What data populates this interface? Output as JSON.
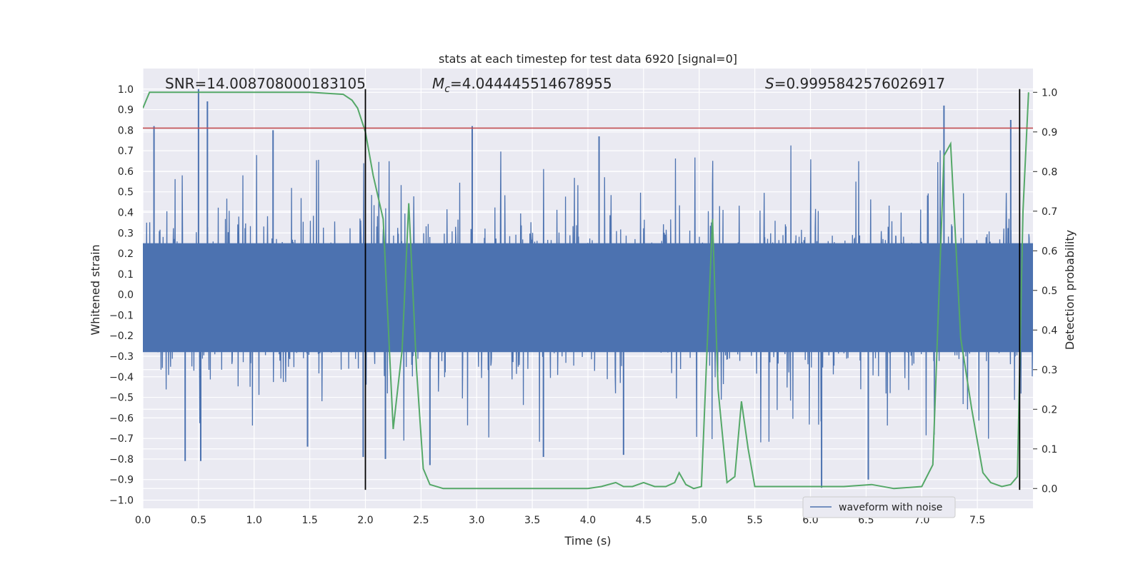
{
  "chart_data": {
    "type": "line",
    "title": "stats at each timestep for test data 6920 [signal=0]",
    "xlabel": "Time (s)",
    "ylabel": "Whitened strain",
    "y2label": "Detection probability",
    "xlim": [
      0.0,
      8.0
    ],
    "ylim": [
      -1.04,
      1.1
    ],
    "y2lim": [
      -0.05,
      1.06
    ],
    "xticks": [
      "0.0",
      "0.5",
      "1.0",
      "1.5",
      "2.0",
      "2.5",
      "3.0",
      "3.5",
      "4.0",
      "4.5",
      "5.0",
      "5.5",
      "6.0",
      "6.5",
      "7.0",
      "7.5"
    ],
    "yticks": [
      "1.0",
      "0.9",
      "0.8",
      "0.7",
      "0.6",
      "0.5",
      "0.4",
      "0.3",
      "0.2",
      "0.1",
      "0.0",
      "−0.1",
      "−0.2",
      "−0.3",
      "−0.4",
      "−0.5",
      "−0.6",
      "−0.7",
      "−0.8",
      "−0.9",
      "−1.0"
    ],
    "y2ticks": [
      "1.0",
      "0.9",
      "0.8",
      "0.7",
      "0.6",
      "0.5",
      "0.4",
      "0.3",
      "0.2",
      "0.1",
      "0.0"
    ],
    "grid": true,
    "legend_position": "lower-right",
    "annotations": {
      "snr": "SNR=14.008708000183105",
      "mc_symbol": "M",
      "mc_sub": "c",
      "mc_value": "=4.044445514678955",
      "s_symbol": "S",
      "s_value": "=0.9995842576026917"
    },
    "threshold_y": 0.81,
    "vlines_x": [
      2.0,
      7.88
    ],
    "vlines_yrange": [
      -0.95,
      1.0
    ],
    "series": [
      {
        "name": "waveform with noise",
        "color": "#4c72b0",
        "envelope_typical": 0.42,
        "peaks": [
          {
            "x": 0.5,
            "y": 1.0
          },
          {
            "x": 0.58,
            "y": 0.94
          },
          {
            "x": 0.1,
            "y": 0.82
          },
          {
            "x": 1.17,
            "y": 0.8
          },
          {
            "x": 2.96,
            "y": 0.82
          },
          {
            "x": 4.1,
            "y": 0.77
          },
          {
            "x": 7.2,
            "y": 0.92
          },
          {
            "x": 7.8,
            "y": 0.85
          },
          {
            "x": 0.38,
            "y": -0.81
          },
          {
            "x": 0.52,
            "y": -0.81
          },
          {
            "x": 1.98,
            "y": -0.79
          },
          {
            "x": 2.18,
            "y": -0.8
          },
          {
            "x": 2.58,
            "y": -0.83
          },
          {
            "x": 3.6,
            "y": -0.79
          },
          {
            "x": 4.32,
            "y": -0.78
          },
          {
            "x": 6.1,
            "y": -0.94
          },
          {
            "x": 6.52,
            "y": -0.9
          },
          {
            "x": 1.48,
            "y": -0.74
          }
        ]
      },
      {
        "name": "detection probability",
        "color": "#55a868",
        "x": [
          0.0,
          0.06,
          0.12,
          0.5,
          1.0,
          1.5,
          1.8,
          1.88,
          1.93,
          2.0,
          2.07,
          2.16,
          2.25,
          2.33,
          2.39,
          2.46,
          2.52,
          2.58,
          2.7,
          3.0,
          3.5,
          4.0,
          4.12,
          4.25,
          4.32,
          4.4,
          4.5,
          4.6,
          4.7,
          4.78,
          4.82,
          4.88,
          4.95,
          5.02,
          5.07,
          5.12,
          5.17,
          5.25,
          5.32,
          5.38,
          5.44,
          5.5,
          5.6,
          6.0,
          6.3,
          6.55,
          6.75,
          7.0,
          7.1,
          7.2,
          7.26,
          7.35,
          7.45,
          7.55,
          7.62,
          7.72,
          7.8,
          7.86,
          7.91,
          7.96
        ],
        "y": [
          0.96,
          1.0,
          1.0,
          1.0,
          1.0,
          1.0,
          0.995,
          0.98,
          0.96,
          0.9,
          0.79,
          0.68,
          0.15,
          0.35,
          0.72,
          0.3,
          0.05,
          0.01,
          0.0,
          0.0,
          0.0,
          0.0,
          0.005,
          0.015,
          0.005,
          0.005,
          0.015,
          0.005,
          0.005,
          0.015,
          0.04,
          0.01,
          0.0,
          0.005,
          0.35,
          0.68,
          0.25,
          0.015,
          0.03,
          0.22,
          0.1,
          0.005,
          0.005,
          0.005,
          0.005,
          0.01,
          0.0,
          0.005,
          0.06,
          0.84,
          0.87,
          0.38,
          0.2,
          0.04,
          0.015,
          0.005,
          0.01,
          0.03,
          0.7,
          1.0
        ]
      }
    ]
  },
  "legend": {
    "label": "waveform with noise"
  }
}
